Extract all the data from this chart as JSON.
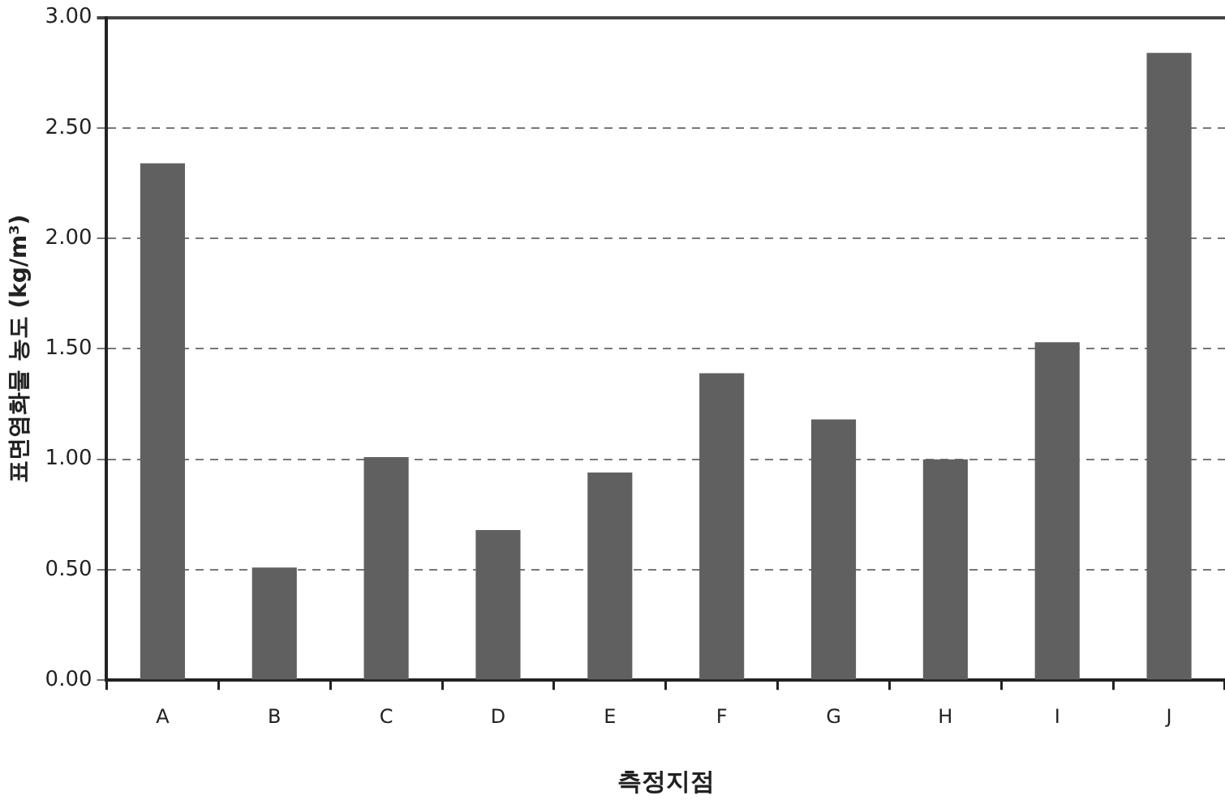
{
  "chart_data": {
    "type": "bar",
    "xlabel": "측정지점",
    "ylabel": "표면염화물 농도 (kg/m³)",
    "categories": [
      "A",
      "B",
      "C",
      "D",
      "E",
      "F",
      "G",
      "H",
      "I",
      "J"
    ],
    "values": [
      2.34,
      0.51,
      1.01,
      0.68,
      0.94,
      1.39,
      1.18,
      1.0,
      1.53,
      2.84
    ],
    "color": "#606060",
    "ylim": [
      0,
      3
    ],
    "yticks": [
      {
        "value": 0,
        "label": "0.00"
      },
      {
        "value": 0.5,
        "label": "0.50"
      },
      {
        "value": 1,
        "label": "1.00"
      },
      {
        "value": 1.5,
        "label": "1.50"
      },
      {
        "value": 2,
        "label": "2.00"
      },
      {
        "value": 2.5,
        "label": "2.50"
      },
      {
        "value": 3,
        "label": "3.00"
      }
    ],
    "grid": "y",
    "legend": false
  }
}
